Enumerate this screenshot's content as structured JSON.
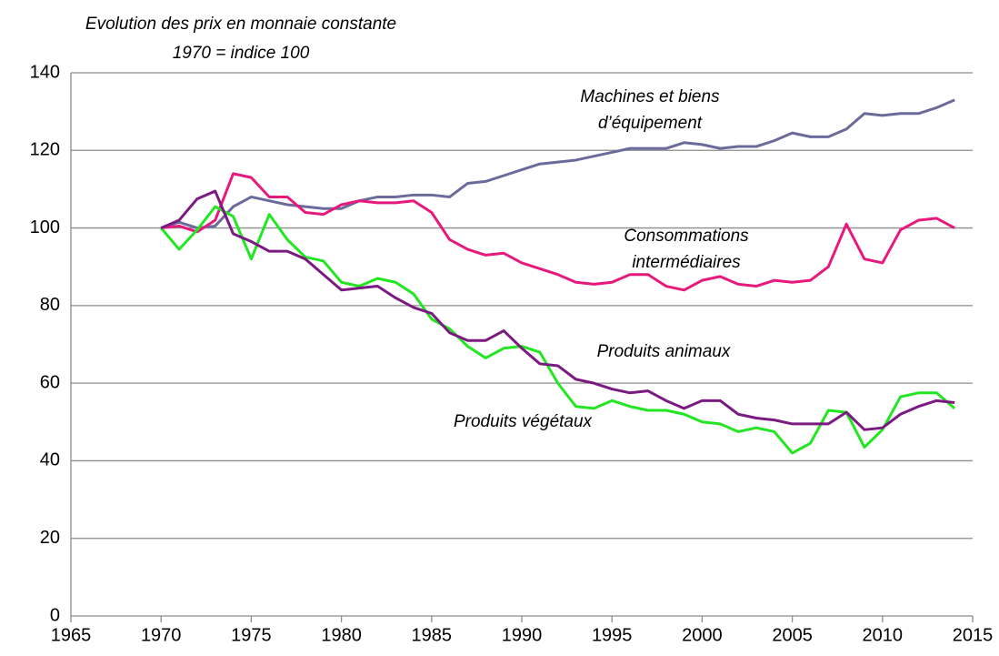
{
  "chart_data": {
    "type": "line",
    "title": [
      "Evolution des prix en monnaie constante",
      "1970 = indice 100"
    ],
    "x": [
      1970,
      1971,
      1972,
      1973,
      1974,
      1975,
      1976,
      1977,
      1978,
      1979,
      1980,
      1981,
      1982,
      1983,
      1984,
      1985,
      1986,
      1987,
      1988,
      1989,
      1990,
      1991,
      1992,
      1993,
      1994,
      1995,
      1996,
      1997,
      1998,
      1999,
      2000,
      2001,
      2002,
      2003,
      2004,
      2005,
      2006,
      2007,
      2008,
      2009,
      2010,
      2011,
      2012,
      2013,
      2014
    ],
    "series": [
      {
        "label": [
          "Machines et biens",
          "d’équipement"
        ],
        "color": "#6b6b9b",
        "values": [
          100,
          101.5,
          100,
          100.5,
          105.5,
          108,
          107,
          106,
          105.5,
          105,
          105,
          107,
          108,
          108,
          108.5,
          108.5,
          108,
          111.5,
          112,
          113.5,
          115,
          116.5,
          117,
          117.5,
          118.5,
          119.5,
          120.5,
          120.5,
          120.5,
          122,
          121.5,
          120.5,
          121,
          121,
          122.5,
          124.5,
          123.5,
          123.5,
          125.5,
          129.5,
          129,
          129.5,
          129.5,
          131,
          133
        ]
      },
      {
        "label": [
          "Consommations",
          "intermédiaires"
        ],
        "color": "#e8197c",
        "values": [
          100,
          100.5,
          99,
          102,
          114,
          113,
          108,
          108,
          104,
          103.5,
          106,
          107,
          106.5,
          106.5,
          107,
          104,
          97,
          94.5,
          93,
          93.5,
          91,
          89.5,
          88,
          86,
          85.5,
          86,
          88,
          88,
          85,
          84,
          86.5,
          87.5,
          85.5,
          85,
          86.5,
          86,
          86.5,
          90,
          101,
          92,
          91,
          99.5,
          102,
          102.5,
          100
        ]
      },
      {
        "label": [
          "Produits végétaux"
        ],
        "color": "#22e622",
        "values": [
          100,
          94.5,
          99.5,
          105.5,
          103,
          92,
          103.5,
          97,
          92.5,
          91.5,
          86,
          85,
          87,
          86,
          83,
          76.5,
          74,
          69.5,
          66.5,
          69,
          69.5,
          68,
          60,
          54,
          53.5,
          55.5,
          54,
          53,
          53,
          52,
          50,
          49.5,
          47.5,
          48.5,
          47.5,
          42,
          44.5,
          53,
          52.5,
          43.5,
          48,
          56.5,
          57.5,
          57.5,
          53.5
        ]
      },
      {
        "label": [
          "Produits animaux"
        ],
        "color": "#7b1a80",
        "values": [
          100,
          102,
          107.5,
          109.5,
          98.5,
          96.5,
          94,
          94,
          92,
          88,
          84,
          84.5,
          85,
          82,
          79.5,
          78,
          73,
          71,
          71,
          73.5,
          69,
          65,
          64.5,
          61,
          60,
          58.5,
          57.5,
          58,
          55.5,
          53.5,
          55.5,
          55.5,
          52,
          51,
          50.5,
          49.5,
          49.5,
          49.5,
          52.5,
          48,
          48.5,
          52,
          54,
          55.5,
          55
        ]
      }
    ],
    "xlim": [
      1965,
      2015
    ],
    "xticks": [
      1965,
      1970,
      1975,
      1980,
      1985,
      1990,
      1995,
      2000,
      2005,
      2010,
      2015
    ],
    "ylim": [
      0,
      140
    ],
    "yticks": [
      0,
      20,
      40,
      60,
      80,
      100,
      120,
      140
    ],
    "grid": true
  }
}
